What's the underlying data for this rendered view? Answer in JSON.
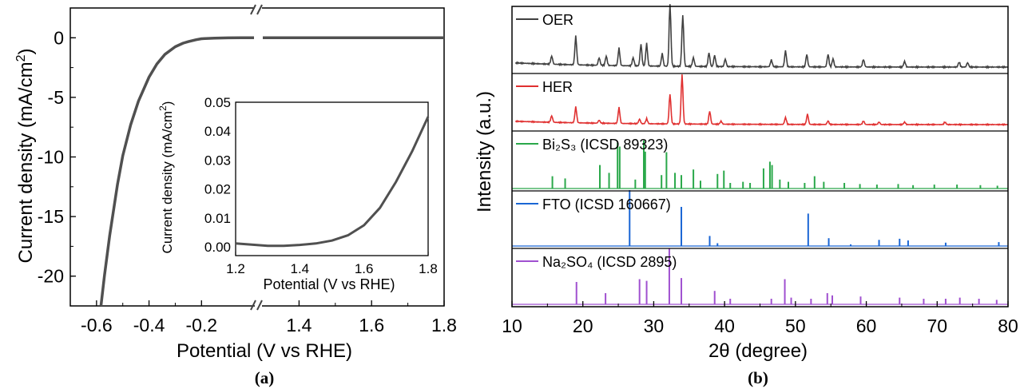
{
  "chart_data": [
    {
      "type": "line",
      "panel_label": "(a)",
      "xlabel": "Potential (V vs RHE)",
      "ylabel": "Current density (mA/cm²)",
      "axis_break": [
        -0.2,
        1.3
      ],
      "xticks_left": [
        -0.6,
        -0.4,
        -0.2
      ],
      "xtick_labels_left": [
        "-0.6",
        "-0.4",
        "-0.2"
      ],
      "xticks_right": [
        1.4,
        1.6,
        1.8
      ],
      "xtick_labels_right": [
        "1.4",
        "1.6",
        "1.8"
      ],
      "ylim": [
        -22.5,
        2.5
      ],
      "yticks": [
        0,
        -5,
        -10,
        -15,
        -20
      ],
      "ytick_labels": [
        "0",
        "-5",
        "-10",
        "-15",
        "-20"
      ],
      "line_color": "#505050",
      "series": [
        {
          "x": [
            -0.583,
            -0.57,
            -0.55,
            -0.52,
            -0.5,
            -0.47,
            -0.44,
            -0.4,
            -0.37,
            -0.34,
            -0.3,
            -0.27,
            -0.25,
            -0.22,
            -0.2,
            -0.15,
            -0.1,
            -0.05,
            -0.02
          ],
          "y": [
            -22.5,
            -20.0,
            -16.6,
            -12.3,
            -9.9,
            -7.3,
            -5.3,
            -3.3,
            -2.2,
            -1.4,
            -0.75,
            -0.45,
            -0.32,
            -0.16,
            -0.08,
            -0.03,
            -0.01,
            0.0,
            0.0
          ]
        },
        {
          "x": [
            1.2,
            1.3,
            1.4,
            1.5,
            1.6,
            1.7,
            1.8
          ],
          "y": [
            0.0,
            0.0,
            0.0,
            0.0,
            0.0,
            0.0,
            0.0
          ]
        }
      ],
      "inset": {
        "type": "line",
        "xlabel": "Potential (V vs RHE)",
        "ylabel": "Current density (mA/cm²)",
        "xlim": [
          1.2,
          1.8
        ],
        "ylim": [
          -0.003,
          0.05
        ],
        "xticks": [
          1.2,
          1.4,
          1.6,
          1.8
        ],
        "xtick_labels": [
          "1.2",
          "1.4",
          "1.6",
          "1.8"
        ],
        "yticks": [
          0.0,
          0.01,
          0.02,
          0.03,
          0.04,
          0.05
        ],
        "ytick_labels": [
          "0.00",
          "0.01",
          "0.02",
          "0.03",
          "0.04",
          "0.05"
        ],
        "x": [
          1.2,
          1.25,
          1.3,
          1.35,
          1.4,
          1.45,
          1.5,
          1.55,
          1.6,
          1.65,
          1.7,
          1.75,
          1.8
        ],
        "y": [
          0.0012,
          0.0008,
          0.0004,
          0.0004,
          0.0007,
          0.0012,
          0.0022,
          0.004,
          0.0075,
          0.0135,
          0.0225,
          0.033,
          0.045
        ]
      }
    },
    {
      "type": "line",
      "panel_label": "(b)",
      "xlabel": "2θ (degree)",
      "ylabel": "Intensity (a.u.)",
      "xlim": [
        10,
        80
      ],
      "xticks": [
        10,
        20,
        30,
        40,
        50,
        60,
        70,
        80
      ],
      "xtick_labels": [
        "10",
        "20",
        "30",
        "40",
        "50",
        "60",
        "70",
        "80"
      ],
      "series": [
        {
          "name": "OER",
          "color": "#404040",
          "kind": "pattern",
          "peaks": [
            [
              15.6,
              0.13
            ],
            [
              19.0,
              0.46
            ],
            [
              22.3,
              0.12
            ],
            [
              23.3,
              0.15
            ],
            [
              25.1,
              0.28
            ],
            [
              27.1,
              0.13
            ],
            [
              28.2,
              0.35
            ],
            [
              29.0,
              0.36
            ],
            [
              31.2,
              0.2
            ],
            [
              32.3,
              1.0
            ],
            [
              34.1,
              0.82
            ],
            [
              35.6,
              0.14
            ],
            [
              37.8,
              0.22
            ],
            [
              38.6,
              0.18
            ],
            [
              40.1,
              0.12
            ],
            [
              46.6,
              0.11
            ],
            [
              48.6,
              0.26
            ],
            [
              51.6,
              0.2
            ],
            [
              54.6,
              0.2
            ],
            [
              55.3,
              0.13
            ],
            [
              59.6,
              0.12
            ],
            [
              65.4,
              0.09
            ],
            [
              73.1,
              0.08
            ],
            [
              74.3,
              0.07
            ]
          ]
        },
        {
          "name": "HER",
          "color": "#e03030",
          "kind": "pattern",
          "peaks": [
            [
              15.6,
              0.13
            ],
            [
              19.0,
              0.32
            ],
            [
              22.3,
              0.06
            ],
            [
              25.1,
              0.32
            ],
            [
              28.0,
              0.09
            ],
            [
              29.0,
              0.1
            ],
            [
              32.3,
              0.6
            ],
            [
              34.0,
              1.0
            ],
            [
              37.9,
              0.26
            ],
            [
              39.5,
              0.06
            ],
            [
              48.6,
              0.14
            ],
            [
              51.7,
              0.21
            ],
            [
              54.6,
              0.07
            ],
            [
              59.6,
              0.07
            ],
            [
              61.8,
              0.05
            ],
            [
              65.4,
              0.05
            ],
            [
              71.1,
              0.05
            ]
          ]
        },
        {
          "name": "Bi₂S₃ (ICSD 89323)",
          "color": "#2aa84a",
          "kind": "sticks",
          "sticks": [
            [
              15.7,
              0.22
            ],
            [
              17.5,
              0.18
            ],
            [
              22.4,
              0.42
            ],
            [
              23.7,
              0.28
            ],
            [
              24.9,
              0.82
            ],
            [
              25.2,
              0.75
            ],
            [
              27.4,
              0.16
            ],
            [
              28.6,
              0.86
            ],
            [
              28.8,
              0.66
            ],
            [
              31.1,
              0.24
            ],
            [
              31.8,
              0.65
            ],
            [
              33.0,
              0.28
            ],
            [
              33.9,
              0.24
            ],
            [
              35.6,
              0.34
            ],
            [
              36.6,
              0.14
            ],
            [
              39.0,
              0.26
            ],
            [
              39.9,
              0.32
            ],
            [
              40.8,
              0.1
            ],
            [
              42.6,
              0.12
            ],
            [
              43.6,
              0.1
            ],
            [
              45.5,
              0.36
            ],
            [
              46.4,
              0.48
            ],
            [
              46.7,
              0.42
            ],
            [
              47.8,
              0.16
            ],
            [
              49.0,
              0.12
            ],
            [
              51.3,
              0.1
            ],
            [
              52.7,
              0.22
            ],
            [
              54.0,
              0.12
            ],
            [
              56.9,
              0.1
            ],
            [
              59.1,
              0.08
            ],
            [
              61.5,
              0.07
            ],
            [
              64.5,
              0.08
            ],
            [
              66.6,
              0.06
            ],
            [
              69.6,
              0.07
            ],
            [
              72.8,
              0.07
            ],
            [
              76.1,
              0.06
            ],
            [
              78.5,
              0.05
            ]
          ]
        },
        {
          "name": "FTO (ICSD 160667)",
          "color": "#1a66d4",
          "kind": "sticks",
          "sticks": [
            [
              26.6,
              1.0
            ],
            [
              33.9,
              0.7
            ],
            [
              37.9,
              0.18
            ],
            [
              39.0,
              0.05
            ],
            [
              51.8,
              0.58
            ],
            [
              54.7,
              0.14
            ],
            [
              57.8,
              0.03
            ],
            [
              61.8,
              0.11
            ],
            [
              64.7,
              0.13
            ],
            [
              65.9,
              0.1
            ],
            [
              71.2,
              0.06
            ],
            [
              78.7,
              0.07
            ]
          ]
        },
        {
          "name": "Na₂SO₄ (ICSD 2895)",
          "color": "#a050d0",
          "kind": "sticks",
          "sticks": [
            [
              19.1,
              0.4
            ],
            [
              23.2,
              0.2
            ],
            [
              28.0,
              0.45
            ],
            [
              29.0,
              0.42
            ],
            [
              32.2,
              1.0
            ],
            [
              33.9,
              0.47
            ],
            [
              38.6,
              0.24
            ],
            [
              40.8,
              0.1
            ],
            [
              46.6,
              0.1
            ],
            [
              48.5,
              0.45
            ],
            [
              49.4,
              0.12
            ],
            [
              52.2,
              0.1
            ],
            [
              54.5,
              0.2
            ],
            [
              55.2,
              0.16
            ],
            [
              59.2,
              0.14
            ],
            [
              64.7,
              0.12
            ],
            [
              68.1,
              0.1
            ],
            [
              71.2,
              0.1
            ],
            [
              73.2,
              0.12
            ],
            [
              75.9,
              0.1
            ],
            [
              78.4,
              0.08
            ]
          ]
        }
      ]
    }
  ]
}
